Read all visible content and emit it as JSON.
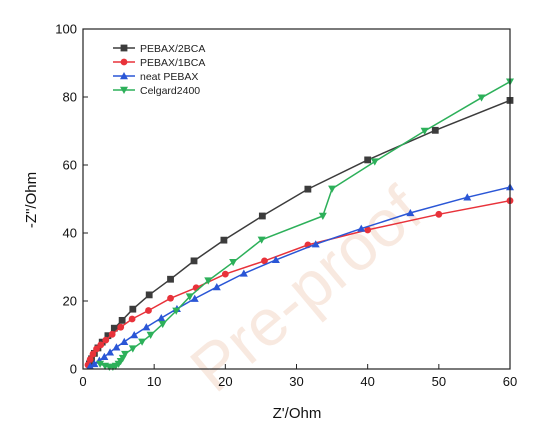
{
  "watermark": "Pre-proof",
  "chart_data": {
    "type": "line",
    "xlabel": "Z'/Ohm",
    "ylabel": "-Z\"/Ohm",
    "xlim": [
      0,
      60
    ],
    "ylim": [
      0,
      100
    ],
    "xticks": [
      "0",
      "10",
      "20",
      "30",
      "40",
      "50",
      "60"
    ],
    "yticks": [
      "0",
      "20",
      "40",
      "60",
      "80",
      "100"
    ],
    "legend_position": "top-left",
    "grid": false,
    "series": [
      {
        "name": "PEBAX/2BCA",
        "color": "#3c3c3c",
        "marker": "square",
        "points": [
          [
            0.9,
            1.5
          ],
          [
            1.2,
            3.0
          ],
          [
            1.6,
            4.6
          ],
          [
            2.1,
            6.2
          ],
          [
            2.7,
            7.9
          ],
          [
            3.5,
            9.8
          ],
          [
            4.4,
            12.0
          ],
          [
            5.5,
            14.3
          ],
          [
            7.0,
            17.6
          ],
          [
            9.3,
            21.8
          ],
          [
            12.3,
            26.4
          ],
          [
            15.6,
            31.8
          ],
          [
            19.8,
            37.9
          ],
          [
            25.2,
            45.0
          ],
          [
            31.6,
            52.9
          ],
          [
            40.0,
            61.5
          ],
          [
            49.5,
            70.2
          ],
          [
            60.0,
            79.0
          ]
        ]
      },
      {
        "name": "PEBAX/1BCA",
        "color": "#e8323a",
        "marker": "circle",
        "points": [
          [
            0.7,
            1.2
          ],
          [
            1.0,
            2.8
          ],
          [
            1.4,
            4.4
          ],
          [
            1.9,
            5.9
          ],
          [
            2.5,
            7.1
          ],
          [
            3.2,
            8.5
          ],
          [
            4.1,
            10.2
          ],
          [
            5.3,
            12.3
          ],
          [
            6.9,
            14.7
          ],
          [
            9.2,
            17.2
          ],
          [
            12.3,
            20.8
          ],
          [
            15.9,
            23.9
          ],
          [
            20.0,
            27.9
          ],
          [
            25.5,
            31.8
          ],
          [
            31.6,
            36.5
          ],
          [
            40.0,
            40.9
          ],
          [
            50.0,
            45.5
          ],
          [
            60.0,
            49.5
          ]
        ]
      },
      {
        "name": "neat PEBAX",
        "color": "#2a56d6",
        "marker": "triangle-up",
        "points": [
          [
            1.0,
            0.8
          ],
          [
            1.6,
            1.5
          ],
          [
            2.3,
            2.5
          ],
          [
            3.0,
            3.6
          ],
          [
            3.8,
            4.9
          ],
          [
            4.7,
            6.4
          ],
          [
            5.8,
            8.0
          ],
          [
            7.2,
            10.0
          ],
          [
            8.9,
            12.3
          ],
          [
            11.0,
            15.0
          ],
          [
            13.2,
            17.7
          ],
          [
            15.7,
            20.7
          ],
          [
            18.8,
            24.1
          ],
          [
            22.6,
            28.1
          ],
          [
            27.1,
            32.1
          ],
          [
            32.7,
            36.7
          ],
          [
            39.1,
            41.3
          ],
          [
            46.0,
            45.9
          ],
          [
            54.0,
            50.5
          ],
          [
            60.0,
            53.5
          ]
        ]
      },
      {
        "name": "Celgard2400",
        "color": "#2db05a",
        "marker": "triangle-down",
        "points": [
          [
            2.4,
            1.5
          ],
          [
            3.1,
            0.9
          ],
          [
            3.7,
            0.6
          ],
          [
            4.2,
            0.6
          ],
          [
            4.6,
            0.9
          ],
          [
            5.0,
            1.5
          ],
          [
            5.3,
            2.3
          ],
          [
            5.6,
            3.2
          ],
          [
            5.9,
            4.4
          ],
          [
            7.0,
            6.0
          ],
          [
            8.3,
            8.0
          ],
          [
            9.5,
            10.0
          ],
          [
            11.2,
            13.2
          ],
          [
            13.1,
            17.1
          ],
          [
            15.0,
            21.3
          ],
          [
            17.6,
            26.0
          ],
          [
            21.1,
            31.4
          ],
          [
            25.1,
            38.0
          ],
          [
            33.7,
            45.0
          ],
          [
            35.0,
            53.0
          ],
          [
            41.0,
            61.0
          ],
          [
            48.0,
            70.0
          ],
          [
            56.0,
            79.8
          ],
          [
            60.0,
            84.5
          ]
        ]
      }
    ]
  }
}
